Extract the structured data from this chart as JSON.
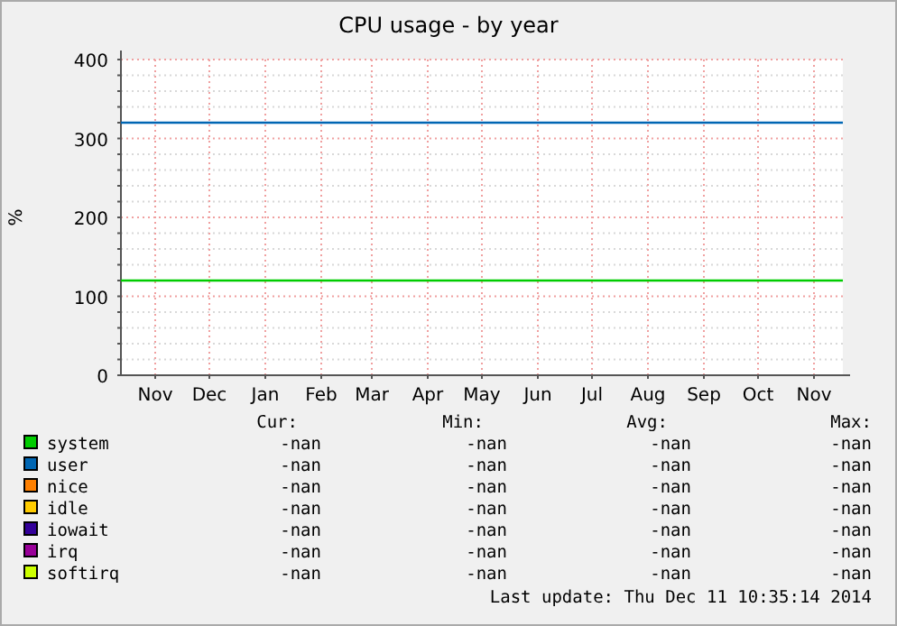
{
  "chart_data": {
    "type": "line",
    "title": "CPU usage - by year",
    "ylabel": "%",
    "x": [
      "2013-10-27",
      "2014-12-01"
    ],
    "xlim": [
      "2013-10-27",
      "2014-12-01"
    ],
    "xticks": [
      {
        "value": "2013-11-15",
        "label": "Nov"
      },
      {
        "value": "2013-12-15",
        "label": "Dec"
      },
      {
        "value": "2014-01-15",
        "label": "Jan"
      },
      {
        "value": "2014-02-15",
        "label": "Feb"
      },
      {
        "value": "2014-03-15",
        "label": "Mar"
      },
      {
        "value": "2014-04-15",
        "label": "Apr"
      },
      {
        "value": "2014-05-15",
        "label": "May"
      },
      {
        "value": "2014-06-15",
        "label": "Jun"
      },
      {
        "value": "2014-07-15",
        "label": "Jul"
      },
      {
        "value": "2014-08-15",
        "label": "Aug"
      },
      {
        "value": "2014-09-15",
        "label": "Sep"
      },
      {
        "value": "2014-10-15",
        "label": "Oct"
      },
      {
        "value": "2014-11-15",
        "label": "Nov"
      }
    ],
    "ylim": [
      0,
      400
    ],
    "yticks": [
      0,
      {
        "value": 20,
        "label": null
      },
      {
        "value": 40,
        "label": null
      },
      {
        "value": 60,
        "label": null
      },
      {
        "value": 80,
        "label": null
      },
      100,
      {
        "value": 120,
        "label": null
      },
      {
        "value": 140,
        "label": null
      },
      {
        "value": 160,
        "label": null
      },
      {
        "value": 180,
        "label": null
      },
      200,
      {
        "value": 220,
        "label": null
      },
      {
        "value": 240,
        "label": null
      },
      {
        "value": 260,
        "label": null
      },
      {
        "value": 280,
        "label": null
      },
      300,
      {
        "value": 320,
        "label": null
      },
      {
        "value": 340,
        "label": null
      },
      {
        "value": 360,
        "label": null
      },
      {
        "value": 380,
        "label": null
      },
      400
    ],
    "grid": true,
    "legend": "bottom",
    "marker": "none",
    "line_style": "solid",
    "series": [
      {
        "name": "system",
        "color": "#00cc00",
        "values": [
          120,
          120
        ]
      },
      {
        "name": "user",
        "color": "#0066b3",
        "values": [
          320,
          320
        ]
      },
      {
        "name": "nice",
        "color": "#ff8000",
        "values": [
          null,
          null
        ]
      },
      {
        "name": "idle",
        "color": "#ffcc00",
        "values": [
          null,
          null
        ]
      },
      {
        "name": "iowait",
        "color": "#330099",
        "values": [
          null,
          null
        ]
      },
      {
        "name": "irq",
        "color": "#990099",
        "values": [
          null,
          null
        ]
      },
      {
        "name": "softirq",
        "color": "#ccff00",
        "values": [
          null,
          null
        ]
      }
    ],
    "annotations": [
      "Cur:",
      "Min:",
      "Avg:",
      "Max:",
      "-nan",
      "-nan",
      "-nan",
      "-nan",
      "-nan",
      "-nan",
      "-nan",
      "-nan",
      "-nan",
      "-nan",
      "-nan",
      "-nan",
      "-nan",
      "-nan",
      "-nan",
      "-nan",
      "-nan",
      "-nan",
      "-nan",
      "-nan",
      "-nan",
      "-nan",
      "-nan",
      "-nan",
      "-nan",
      "-nan",
      "-nan",
      "-nan",
      "Last update:  Thu Dec 11 10:35:14 2014"
    ]
  }
}
